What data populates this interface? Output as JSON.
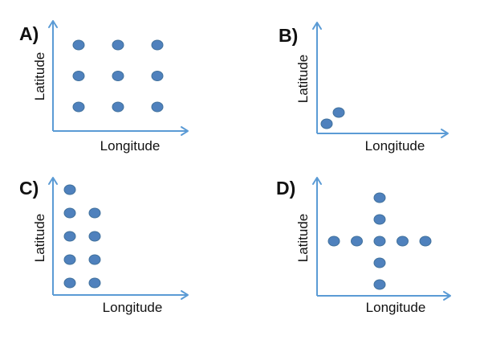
{
  "panels": [
    {
      "id": "a",
      "letter": "A)",
      "xlabel": "Longitude",
      "ylabel": "Latitude",
      "points": [
        {
          "lon": 1,
          "lat": 3
        },
        {
          "lon": 2,
          "lat": 3
        },
        {
          "lon": 3,
          "lat": 3
        },
        {
          "lon": 1,
          "lat": 2
        },
        {
          "lon": 2,
          "lat": 2
        },
        {
          "lon": 3,
          "lat": 2
        },
        {
          "lon": 1,
          "lat": 1
        },
        {
          "lon": 2,
          "lat": 1
        },
        {
          "lon": 3,
          "lat": 1
        }
      ]
    },
    {
      "id": "b",
      "letter": "B)",
      "xlabel": "Longitude",
      "ylabel": "Latitude",
      "points": [
        {
          "lon": 1,
          "lat": 1
        },
        {
          "lon": 2,
          "lat": 2
        }
      ]
    },
    {
      "id": "c",
      "letter": "C)",
      "xlabel": "Longitude",
      "ylabel": "Latitude",
      "points": [
        {
          "lon": 1,
          "lat": 5
        },
        {
          "lon": 1,
          "lat": 4
        },
        {
          "lon": 2,
          "lat": 4
        },
        {
          "lon": 1,
          "lat": 3
        },
        {
          "lon": 2,
          "lat": 3
        },
        {
          "lon": 1,
          "lat": 2
        },
        {
          "lon": 2,
          "lat": 2
        },
        {
          "lon": 1,
          "lat": 1
        },
        {
          "lon": 2,
          "lat": 1
        }
      ]
    },
    {
      "id": "d",
      "letter": "D)",
      "xlabel": "Longitude",
      "ylabel": "Latitude",
      "points": [
        {
          "lon": 3,
          "lat": 5
        },
        {
          "lon": 3,
          "lat": 4
        },
        {
          "lon": 1,
          "lat": 3
        },
        {
          "lon": 2,
          "lat": 3
        },
        {
          "lon": 3,
          "lat": 3
        },
        {
          "lon": 4,
          "lat": 3
        },
        {
          "lon": 5,
          "lat": 3
        },
        {
          "lon": 3,
          "lat": 2
        },
        {
          "lon": 3,
          "lat": 1
        }
      ]
    }
  ],
  "colors": {
    "axis": "#5b9bd5",
    "point_fill": "#4f81bd",
    "point_stroke": "#41719c",
    "text": "#111111"
  }
}
